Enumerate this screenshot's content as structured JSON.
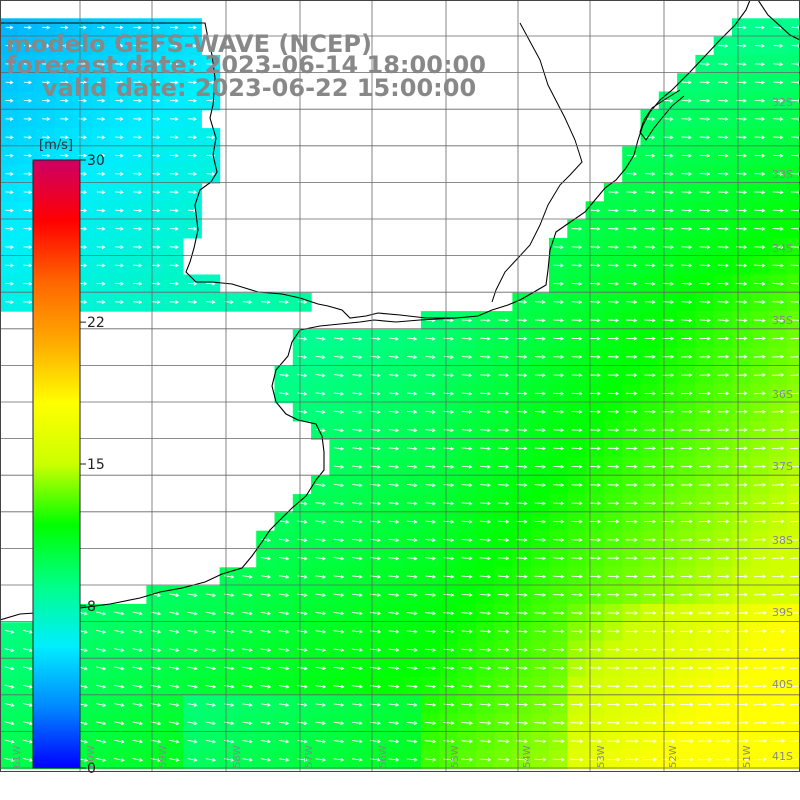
{
  "title": {
    "model": "modelo GEFS-WAVE (NCEP)",
    "forecast": "forecast date: 2023-06-14 18:00:00",
    "valid": "valid date: 2023-06-22 15:00:00"
  },
  "colorbar": {
    "unit": "[m/s]",
    "min": 0,
    "max": 30,
    "ticks": [
      {
        "value": 30,
        "label": "30"
      },
      {
        "value": 22,
        "label": "22"
      },
      {
        "value": 15,
        "label": "15"
      },
      {
        "value": 8,
        "label": "8"
      },
      {
        "value": 0,
        "label": "0"
      }
    ],
    "colors": [
      "#0000ff",
      "#0088ff",
      "#00eeff",
      "#00ff88",
      "#00ff00",
      "#ccff00",
      "#ffff00",
      "#ffaa00",
      "#ff6600",
      "#ff0000",
      "#cc0066"
    ]
  },
  "lat_labels": [
    "32S",
    "33S",
    "34S",
    "35S",
    "36S",
    "37S",
    "38S",
    "39S",
    "40S",
    "41S"
  ],
  "lon_labels": [
    "61W",
    "60W",
    "59W",
    "58W",
    "57W",
    "56W",
    "55W",
    "54W",
    "53W",
    "52W",
    "51W"
  ],
  "colors": {
    "land": "#ffffff",
    "coastline": "#000000",
    "grid": "#666666",
    "arrow": "#ffffff",
    "axis_label": "#888888"
  }
}
